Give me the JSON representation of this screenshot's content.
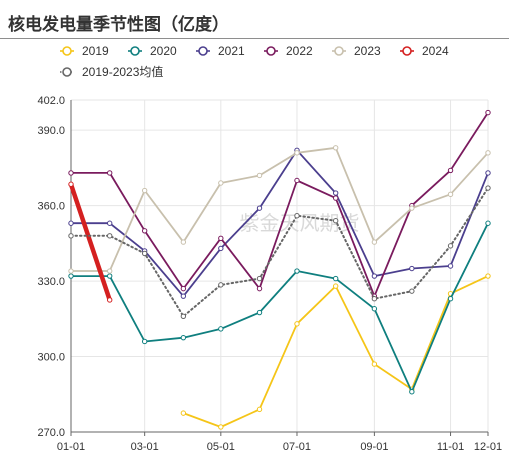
{
  "chart_data": {
    "type": "line",
    "title": "核电发电量季节性图（亿度）",
    "watermark": "紫金天风期货",
    "xlabel": "",
    "ylabel": "",
    "ylim": [
      270.0,
      402.0
    ],
    "y_ticks": [
      "270.0",
      "300.0",
      "330.0",
      "360.0",
      "390.0",
      "402.0"
    ],
    "x_range": [
      "01-01",
      "12-01"
    ],
    "x_ticks": [
      "01-01",
      "03-01",
      "05-01",
      "07-01",
      "09-01",
      "11-01",
      "12-01"
    ],
    "grid": true,
    "legend_position": "top",
    "series": [
      {
        "name": "2019",
        "color": "#f5c518",
        "style": "solid",
        "points": [
          [
            "04-01",
            277.5
          ],
          [
            "05-01",
            272
          ],
          [
            "06-01",
            279
          ],
          [
            "07-01",
            313
          ],
          [
            "08-01",
            328
          ],
          [
            "09-01",
            297
          ],
          [
            "10-01",
            287
          ],
          [
            "11-01",
            325
          ],
          [
            "12-01",
            332
          ]
        ]
      },
      {
        "name": "2020",
        "color": "#0f7f7f",
        "style": "solid",
        "points": [
          [
            "01-01",
            332
          ],
          [
            "02-01",
            332
          ],
          [
            "03-01",
            306
          ],
          [
            "04-01",
            307.5
          ],
          [
            "05-01",
            311
          ],
          [
            "06-01",
            317.5
          ],
          [
            "07-01",
            334
          ],
          [
            "08-01",
            331
          ],
          [
            "09-01",
            319
          ],
          [
            "10-01",
            286
          ],
          [
            "11-01",
            323
          ],
          [
            "12-01",
            353
          ]
        ]
      },
      {
        "name": "2021",
        "color": "#4b3f8e",
        "style": "solid",
        "points": [
          [
            "01-01",
            353
          ],
          [
            "02-01",
            353
          ],
          [
            "03-01",
            342
          ],
          [
            "04-01",
            324
          ],
          [
            "05-01",
            343
          ],
          [
            "06-01",
            359
          ],
          [
            "07-01",
            382
          ],
          [
            "08-01",
            365
          ],
          [
            "09-01",
            332
          ],
          [
            "10-01",
            335
          ],
          [
            "11-01",
            336
          ],
          [
            "12-01",
            373
          ]
        ]
      },
      {
        "name": "2022",
        "color": "#7a1b5e",
        "style": "solid",
        "points": [
          [
            "01-01",
            373
          ],
          [
            "02-01",
            373
          ],
          [
            "03-01",
            350
          ],
          [
            "04-01",
            327
          ],
          [
            "05-01",
            347
          ],
          [
            "06-01",
            327
          ],
          [
            "07-01",
            370
          ],
          [
            "08-01",
            363
          ],
          [
            "09-01",
            324
          ],
          [
            "10-01",
            360
          ],
          [
            "11-01",
            374
          ],
          [
            "12-01",
            397
          ]
        ]
      },
      {
        "name": "2023",
        "color": "#c8c0ad",
        "style": "solid",
        "points": [
          [
            "01-01",
            334
          ],
          [
            "02-01",
            334
          ],
          [
            "03-01",
            366
          ],
          [
            "04-01",
            345.5
          ],
          [
            "05-01",
            369
          ],
          [
            "06-01",
            372
          ],
          [
            "07-01",
            381
          ],
          [
            "08-01",
            383
          ],
          [
            "09-01",
            345.5
          ],
          [
            "10-01",
            359
          ],
          [
            "11-01",
            364.5
          ],
          [
            "12-01",
            381
          ]
        ]
      },
      {
        "name": "2024",
        "color": "#d42020",
        "style": "solid",
        "points": [
          [
            "01-01",
            368.5
          ],
          [
            "02-01",
            322.5
          ]
        ]
      },
      {
        "name": "2019-2023均值",
        "color": "#666666",
        "style": "dotted",
        "points": [
          [
            "01-01",
            348
          ],
          [
            "02-01",
            348
          ],
          [
            "03-01",
            341
          ],
          [
            "04-01",
            316
          ],
          [
            "05-01",
            328.5
          ],
          [
            "06-01",
            331
          ],
          [
            "07-01",
            356
          ],
          [
            "08-01",
            354
          ],
          [
            "09-01",
            323
          ],
          [
            "10-01",
            326
          ],
          [
            "11-01",
            344
          ],
          [
            "12-01",
            367
          ]
        ]
      }
    ]
  }
}
